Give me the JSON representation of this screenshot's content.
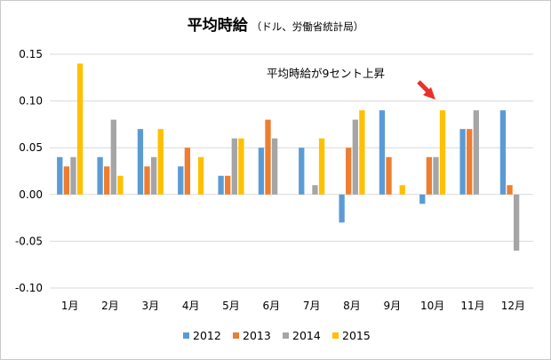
{
  "chart_data": {
    "type": "bar",
    "title": "平均時給",
    "subtitle": "（ドル、労働省統計局）",
    "categories": [
      "1月",
      "2月",
      "3月",
      "4月",
      "5月",
      "6月",
      "7月",
      "8月",
      "9月",
      "10月",
      "11月",
      "12月"
    ],
    "ylim": [
      -0.1,
      0.15
    ],
    "yticks": [
      "0.15",
      "0.10",
      "0.05",
      "0.00",
      "-0.05",
      "-0.10"
    ],
    "ytick_values": [
      0.15,
      0.1,
      0.05,
      0.0,
      -0.05,
      -0.1
    ],
    "grid": true,
    "legend_position": "bottom",
    "series": [
      {
        "name": "2012",
        "color": "#5b9bd5",
        "values": [
          0.04,
          0.04,
          0.07,
          0.03,
          0.02,
          0.05,
          0.05,
          -0.03,
          0.09,
          -0.01,
          0.07,
          0.09
        ]
      },
      {
        "name": "2013",
        "color": "#ed7d31",
        "values": [
          0.03,
          0.03,
          0.03,
          0.05,
          0.02,
          0.08,
          0.0,
          0.05,
          0.04,
          0.04,
          0.07,
          0.01
        ]
      },
      {
        "name": "2014",
        "color": "#a5a5a5",
        "values": [
          0.04,
          0.08,
          0.04,
          0.0,
          0.06,
          0.06,
          0.01,
          0.08,
          0.0,
          0.04,
          0.09,
          -0.06
        ]
      },
      {
        "name": "2015",
        "color": "#ffc000",
        "values": [
          0.14,
          0.02,
          0.07,
          0.04,
          0.06,
          null,
          0.06,
          0.09,
          0.01,
          0.09,
          null,
          null
        ]
      }
    ],
    "annotation": {
      "text": "平均時給が9セント上昇",
      "category": "10月",
      "series": "2015",
      "arrow_color": "#e8312a"
    }
  }
}
